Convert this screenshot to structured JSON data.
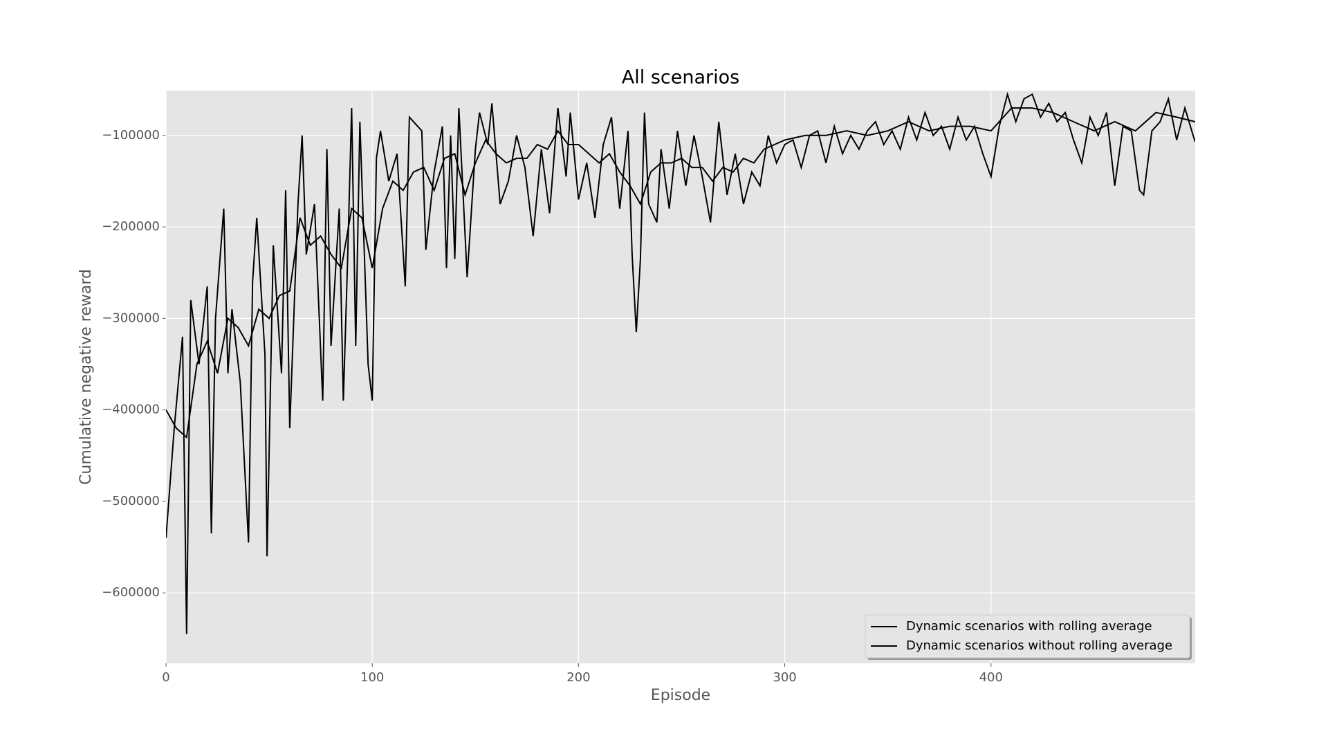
{
  "chart_data": {
    "type": "line",
    "title": "All scenarios",
    "x_label": "Episode",
    "y_label": "Cumulative negative reward",
    "xlim": [
      0,
      499
    ],
    "xticks": [
      0,
      100,
      200,
      300,
      400
    ],
    "ylim": [
      -677000,
      -51000
    ],
    "yticks": [
      {
        "value": -600000,
        "label": "−600000"
      },
      {
        "value": -500000,
        "label": "−500000"
      },
      {
        "value": -400000,
        "label": "−400000"
      },
      {
        "value": -300000,
        "label": "−300000"
      },
      {
        "value": -200000,
        "label": "−200000"
      },
      {
        "value": -100000,
        "label": "−100000"
      }
    ],
    "grid": true,
    "background": "#e5e5e5",
    "legend_position": "lower right",
    "series": [
      {
        "name": "Dynamic scenarios with rolling average",
        "color": "#000000",
        "x": [
          0,
          4,
          8,
          10,
          12,
          16,
          20,
          22,
          24,
          28,
          30,
          32,
          36,
          40,
          42,
          44,
          48,
          49,
          52,
          56,
          58,
          60,
          64,
          66,
          68,
          72,
          76,
          78,
          80,
          84,
          86,
          88,
          90,
          92,
          94,
          98,
          100,
          102,
          104,
          108,
          112,
          116,
          118,
          124,
          126,
          130,
          134,
          136,
          138,
          140,
          142,
          146,
          150,
          152,
          156,
          158,
          162,
          166,
          170,
          174,
          178,
          182,
          186,
          190,
          194,
          196,
          200,
          204,
          208,
          212,
          216,
          220,
          224,
          226,
          228,
          230,
          232,
          234,
          238,
          240,
          244,
          248,
          252,
          256,
          260,
          264,
          268,
          272,
          276,
          280,
          284,
          288,
          292,
          296,
          300,
          304,
          308,
          312,
          316,
          320,
          324,
          328,
          332,
          336,
          340,
          344,
          348,
          352,
          356,
          360,
          364,
          368,
          372,
          376,
          380,
          384,
          388,
          392,
          396,
          400,
          404,
          408,
          412,
          416,
          420,
          424,
          428,
          432,
          436,
          440,
          444,
          448,
          452,
          456,
          460,
          464,
          468,
          472,
          474,
          478,
          482,
          486,
          490,
          494,
          498,
          499
        ],
        "values": [
          -540000,
          -420000,
          -320000,
          -645000,
          -280000,
          -350000,
          -265000,
          -535000,
          -300000,
          -180000,
          -360000,
          -290000,
          -370000,
          -545000,
          -260000,
          -190000,
          -340000,
          -560000,
          -220000,
          -360000,
          -160000,
          -420000,
          -175000,
          -100000,
          -230000,
          -175000,
          -390000,
          -115000,
          -330000,
          -180000,
          -390000,
          -240000,
          -70000,
          -330000,
          -85000,
          -350000,
          -390000,
          -125000,
          -95000,
          -150000,
          -120000,
          -265000,
          -80000,
          -95000,
          -225000,
          -140000,
          -90000,
          -245000,
          -100000,
          -235000,
          -70000,
          -255000,
          -115000,
          -75000,
          -110000,
          -65000,
          -175000,
          -150000,
          -100000,
          -135000,
          -210000,
          -115000,
          -185000,
          -70000,
          -145000,
          -75000,
          -170000,
          -130000,
          -190000,
          -110000,
          -80000,
          -180000,
          -95000,
          -230000,
          -315000,
          -235000,
          -75000,
          -175000,
          -195000,
          -115000,
          -180000,
          -95000,
          -155000,
          -100000,
          -145000,
          -195000,
          -85000,
          -165000,
          -120000,
          -175000,
          -140000,
          -155000,
          -100000,
          -130000,
          -110000,
          -105000,
          -135000,
          -100000,
          -95000,
          -130000,
          -90000,
          -120000,
          -100000,
          -115000,
          -95000,
          -85000,
          -110000,
          -95000,
          -115000,
          -80000,
          -105000,
          -75000,
          -100000,
          -90000,
          -115000,
          -80000,
          -105000,
          -90000,
          -120000,
          -145000,
          -90000,
          -55000,
          -85000,
          -60000,
          -55000,
          -80000,
          -65000,
          -85000,
          -75000,
          -105000,
          -130000,
          -80000,
          -100000,
          -75000,
          -155000,
          -90000,
          -95000,
          -160000,
          -165000,
          -95000,
          -85000,
          -60000,
          -105000,
          -70000,
          -100000,
          -107000
        ]
      },
      {
        "name": "Dynamic scenarios without rolling average",
        "color": "#000000",
        "x": [
          0,
          5,
          10,
          15,
          20,
          25,
          30,
          35,
          40,
          45,
          50,
          55,
          60,
          65,
          70,
          75,
          80,
          85,
          90,
          95,
          100,
          105,
          110,
          115,
          120,
          125,
          130,
          135,
          140,
          145,
          150,
          155,
          160,
          165,
          170,
          175,
          180,
          185,
          190,
          195,
          200,
          205,
          210,
          215,
          220,
          225,
          230,
          235,
          240,
          245,
          250,
          255,
          260,
          265,
          270,
          275,
          280,
          285,
          290,
          295,
          300,
          310,
          320,
          330,
          340,
          350,
          360,
          370,
          380,
          390,
          400,
          410,
          420,
          430,
          440,
          450,
          460,
          470,
          480,
          490,
          499
        ],
        "values": [
          -400000,
          -420000,
          -430000,
          -350000,
          -325000,
          -360000,
          -300000,
          -310000,
          -330000,
          -290000,
          -300000,
          -275000,
          -270000,
          -190000,
          -220000,
          -210000,
          -230000,
          -245000,
          -180000,
          -190000,
          -245000,
          -180000,
          -150000,
          -160000,
          -140000,
          -135000,
          -160000,
          -125000,
          -120000,
          -165000,
          -130000,
          -105000,
          -120000,
          -130000,
          -125000,
          -125000,
          -110000,
          -115000,
          -95000,
          -110000,
          -110000,
          -120000,
          -130000,
          -120000,
          -140000,
          -155000,
          -175000,
          -140000,
          -130000,
          -130000,
          -125000,
          -135000,
          -135000,
          -150000,
          -135000,
          -140000,
          -125000,
          -130000,
          -115000,
          -110000,
          -105000,
          -100000,
          -100000,
          -95000,
          -100000,
          -95000,
          -85000,
          -95000,
          -90000,
          -90000,
          -95000,
          -70000,
          -70000,
          -75000,
          -85000,
          -95000,
          -85000,
          -95000,
          -75000,
          -80000,
          -85000
        ]
      }
    ]
  }
}
